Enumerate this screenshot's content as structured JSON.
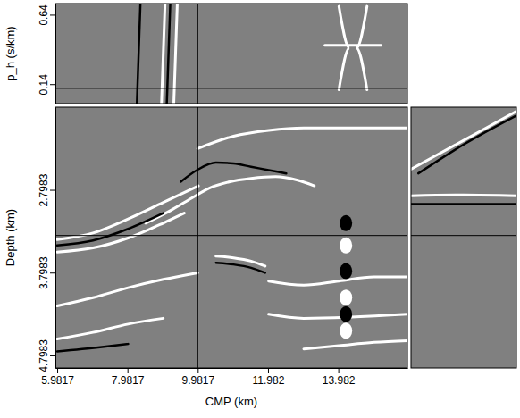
{
  "chart_data": [
    {
      "type": "line",
      "ylabel": "p_h (s/km)",
      "xlim": [
        5.93,
        15.95
      ],
      "ylim": [
        0,
        0.72
      ],
      "yticks": [
        0.14,
        0.64
      ],
      "tick_labels": "y",
      "series": [
        {
          "color": "#000000",
          "x": [
            8.25,
            8.3,
            8.35
          ],
          "values": [
            0,
            0.36,
            0.72
          ]
        },
        {
          "color": "#ffffff",
          "x": [
            8.95,
            9.0,
            9.05
          ],
          "values": [
            0,
            0.36,
            0.72
          ]
        },
        {
          "color": "#000000",
          "x": [
            9.1,
            9.15,
            9.2
          ],
          "values": [
            0,
            0.36,
            0.72
          ]
        },
        {
          "color": "#ffffff",
          "x": [
            9.3,
            9.35,
            9.4
          ],
          "values": [
            0,
            0.36,
            0.72
          ]
        },
        {
          "color": "#ffffff",
          "x": [
            14.0,
            14.3,
            14.0
          ],
          "values": [
            0.1,
            0.4,
            0.7
          ]
        },
        {
          "color": "#ffffff",
          "x": [
            14.8,
            14.5,
            14.8
          ],
          "values": [
            0.1,
            0.4,
            0.7
          ]
        },
        {
          "color": "#ffffff",
          "x": [
            13.6,
            14.4,
            15.2
          ],
          "values": [
            0.42,
            0.42,
            0.42
          ]
        }
      ]
    },
    {
      "type": "line",
      "xlabel": "CMP (km)",
      "ylabel": "Depth (km)",
      "xlim": [
        5.93,
        15.95
      ],
      "ylim": [
        4.95,
        1.8
      ],
      "xticks": [
        5.9817,
        7.9817,
        9.9817,
        11.982,
        13.982
      ],
      "yticks": [
        2.7983,
        3.7983,
        4.7983
      ],
      "crosshair": {
        "cmp": 9.9817,
        "depth": 3.35,
        "p_h": 0.11
      },
      "series": [
        {
          "color": "#ffffff",
          "x": [
            9.98,
            11,
            12,
            13,
            14,
            15.95
          ],
          "values": [
            2.3,
            2.15,
            2.08,
            2.05,
            2.05,
            2.05
          ]
        },
        {
          "color": "#000000",
          "x": [
            9.5,
            10,
            10.5,
            11,
            11.5,
            12,
            12.5
          ],
          "values": [
            2.7,
            2.55,
            2.47,
            2.48,
            2.52,
            2.56,
            2.6
          ]
        },
        {
          "color": "#ffffff",
          "x": [
            8.5,
            9.2,
            9.8,
            10.3,
            10.9,
            11.5,
            12.2,
            12.8,
            13.3
          ],
          "values": [
            3.2,
            3.05,
            2.9,
            2.78,
            2.7,
            2.66,
            2.64,
            2.68,
            2.75
          ]
        },
        {
          "color": "#ffffff",
          "x": [
            5.98,
            7,
            8,
            9,
            10
          ],
          "values": [
            3.4,
            3.32,
            3.15,
            2.95,
            2.75
          ]
        },
        {
          "color": "#000000",
          "x": [
            5.98,
            7,
            8,
            9
          ],
          "values": [
            3.47,
            3.41,
            3.27,
            3.08
          ]
        },
        {
          "color": "#ffffff",
          "x": [
            5.98,
            7,
            8,
            9,
            9.6
          ],
          "values": [
            3.55,
            3.5,
            3.38,
            3.2,
            3.08
          ]
        },
        {
          "color": "#ffffff",
          "x": [
            10.5,
            11,
            11.5,
            11.9
          ],
          "values": [
            3.6,
            3.62,
            3.66,
            3.72
          ]
        },
        {
          "color": "#000000",
          "x": [
            10.5,
            11,
            11.5,
            11.9
          ],
          "values": [
            3.68,
            3.7,
            3.74,
            3.8
          ]
        },
        {
          "color": "#ffffff",
          "x": [
            5.98,
            7,
            8,
            9,
            9.98
          ],
          "values": [
            4.2,
            4.1,
            3.98,
            3.88,
            3.8
          ]
        },
        {
          "color": "#ffffff",
          "x": [
            12,
            13,
            14,
            15,
            15.95
          ],
          "values": [
            3.9,
            3.95,
            3.9,
            3.85,
            3.85
          ]
        },
        {
          "color": "#ffffff",
          "x": [
            12,
            13,
            15.95
          ],
          "values": [
            4.3,
            4.35,
            4.3
          ]
        },
        {
          "color": "#ffffff",
          "x": [
            5.98,
            7,
            8,
            9
          ],
          "values": [
            4.6,
            4.52,
            4.42,
            4.35
          ]
        },
        {
          "color": "#000000",
          "x": [
            5.98,
            7.2,
            8
          ],
          "values": [
            4.75,
            4.7,
            4.66
          ]
        },
        {
          "color": "#ffffff",
          "x": [
            13,
            14,
            15,
            15.95
          ],
          "values": [
            4.72,
            4.68,
            4.64,
            4.62
          ]
        },
        {
          "type": "scatter",
          "marker": "ellipse",
          "color": "#ffffff",
          "x": [
            14.2,
            14.2,
            14.2
          ],
          "values": [
            3.47,
            4.1,
            4.5
          ]
        },
        {
          "type": "scatter",
          "marker": "ellipse",
          "color": "#000000",
          "x": [
            14.2,
            14.2,
            14.2
          ],
          "values": [
            3.2,
            3.78,
            4.3
          ]
        }
      ]
    },
    {
      "type": "line",
      "xlim": [
        0,
        0.72
      ],
      "ylim": [
        4.95,
        1.8
      ],
      "tick_labels": false,
      "series": [
        {
          "color": "#ffffff",
          "x": [
            0,
            0.36,
            0.72
          ],
          "values": [
            2.55,
            2.2,
            1.85
          ]
        },
        {
          "color": "#000000",
          "x": [
            0.05,
            0.36,
            0.72
          ],
          "values": [
            2.6,
            2.25,
            1.9
          ]
        },
        {
          "color": "#ffffff",
          "x": [
            0,
            0.36,
            0.72
          ],
          "values": [
            2.87,
            2.86,
            2.87
          ]
        },
        {
          "color": "#000000",
          "x": [
            0,
            0.72
          ],
          "values": [
            2.97,
            2.97
          ]
        }
      ]
    }
  ]
}
